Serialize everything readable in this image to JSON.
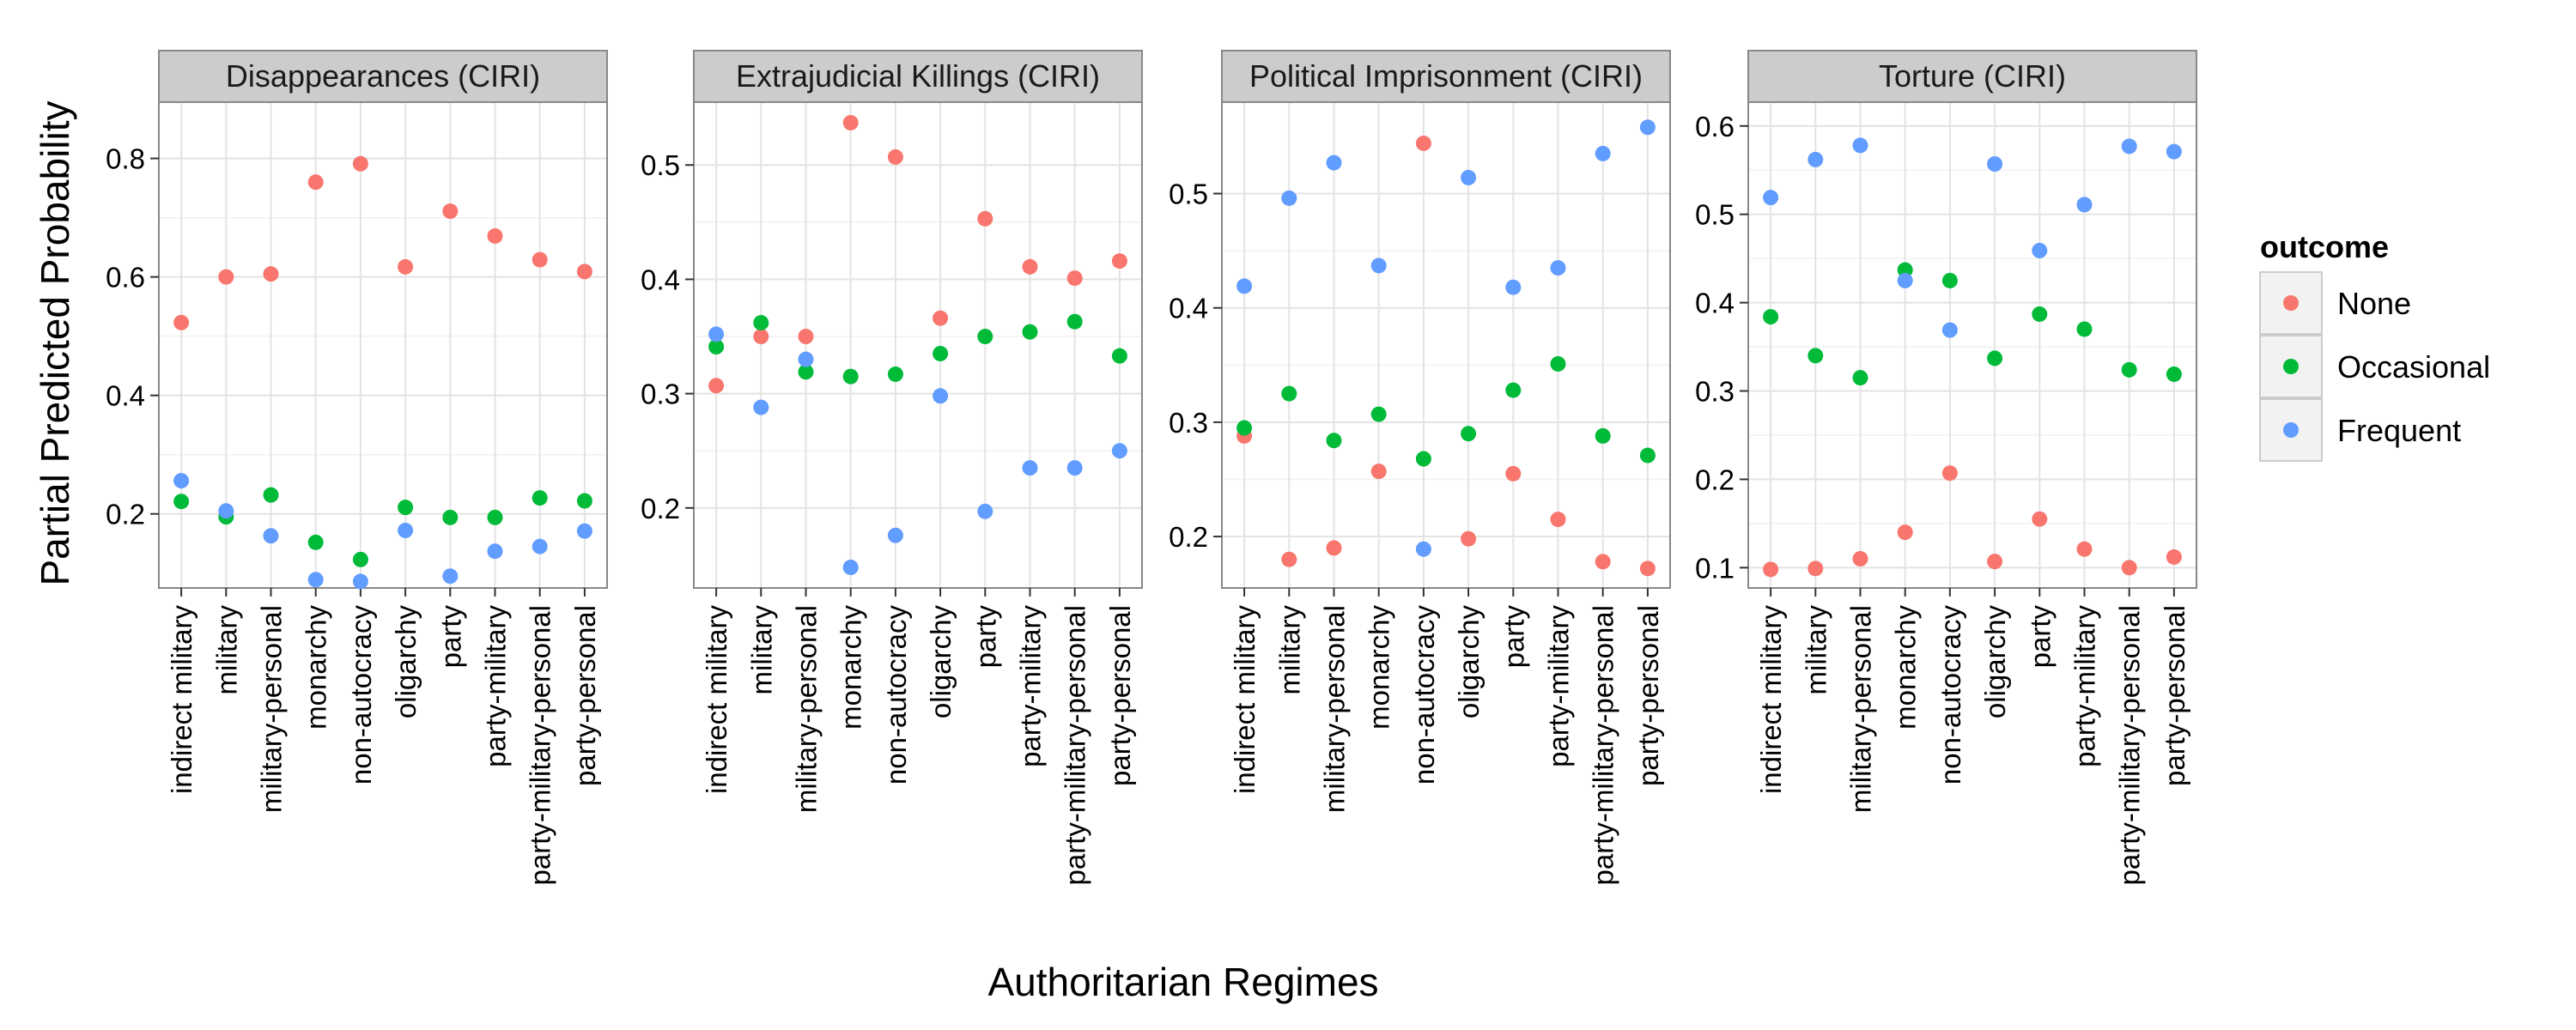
{
  "chart_data": {
    "type": "scatter",
    "xlabel": "Authoritarian Regimes",
    "ylabel": "Partial Predicted Probability",
    "categories": [
      "indirect military",
      "military",
      "military-personal",
      "monarchy",
      "non-autocracy",
      "oligarchy",
      "party",
      "party-military",
      "party-military-personal",
      "party-personal"
    ],
    "legend": {
      "title": "outcome",
      "position": "right",
      "entries": [
        {
          "name": "None",
          "color": "#F8766D"
        },
        {
          "name": "Occasional",
          "color": "#00BA38"
        },
        {
          "name": "Frequent",
          "color": "#619CFF"
        }
      ]
    },
    "grid": true,
    "panels": [
      {
        "title": "Disappearances (CIRI)",
        "ylim": [
          0.075,
          0.895
        ],
        "yticks": [
          0.2,
          0.4,
          0.6,
          0.8
        ],
        "ytick_labels": [
          "0.2",
          "0.4",
          "0.6",
          "0.8"
        ],
        "series": [
          {
            "name": "None",
            "values": [
              0.523,
              0.6,
              0.605,
              0.76,
              0.791,
              0.617,
              0.711,
              0.669,
              0.629,
              0.609
            ]
          },
          {
            "name": "Occasional",
            "values": [
              0.221,
              0.195,
              0.232,
              0.152,
              0.123,
              0.211,
              0.194,
              0.194,
              0.227,
              0.222
            ]
          },
          {
            "name": "Frequent",
            "values": [
              0.256,
              0.205,
              0.163,
              0.089,
              0.086,
              0.172,
              0.095,
              0.137,
              0.145,
              0.171
            ]
          }
        ]
      },
      {
        "title": "Extrajudicial Killings (CIRI)",
        "ylim": [
          0.13,
          0.555
        ],
        "yticks": [
          0.2,
          0.3,
          0.4,
          0.5
        ],
        "ytick_labels": [
          "0.2",
          "0.3",
          "0.4",
          "0.5"
        ],
        "series": [
          {
            "name": "None",
            "values": [
              0.307,
              0.35,
              0.35,
              0.537,
              0.507,
              0.366,
              0.453,
              0.411,
              0.401,
              0.416
            ]
          },
          {
            "name": "Occasional",
            "values": [
              0.341,
              0.362,
              0.319,
              0.315,
              0.317,
              0.335,
              0.35,
              0.354,
              0.363,
              0.333
            ]
          },
          {
            "name": "Frequent",
            "values": [
              0.352,
              0.288,
              0.33,
              0.148,
              0.176,
              0.298,
              0.197,
              0.235,
              0.235,
              0.25
            ]
          }
        ]
      },
      {
        "title": "Political Imprisonment (CIRI)",
        "ylim": [
          0.155,
          0.58
        ],
        "yticks": [
          0.2,
          0.3,
          0.4,
          0.5
        ],
        "ytick_labels": [
          "0.2",
          "0.3",
          "0.4",
          "0.5"
        ],
        "series": [
          {
            "name": "None",
            "values": [
              0.288,
              0.18,
              0.19,
              0.257,
              0.544,
              0.198,
              0.255,
              0.215,
              0.178,
              0.172
            ]
          },
          {
            "name": "Occasional",
            "values": [
              0.295,
              0.325,
              0.284,
              0.307,
              0.268,
              0.29,
              0.328,
              0.351,
              0.288,
              0.271
            ]
          },
          {
            "name": "Frequent",
            "values": [
              0.419,
              0.496,
              0.527,
              0.437,
              0.189,
              0.514,
              0.418,
              0.435,
              0.535,
              0.558
            ]
          }
        ]
      },
      {
        "title": "Torture (CIRI)",
        "ylim": [
          0.077,
          0.627
        ],
        "yticks": [
          0.1,
          0.2,
          0.3,
          0.4,
          0.5,
          0.6
        ],
        "ytick_labels": [
          "0.1",
          "0.2",
          "0.3",
          "0.4",
          "0.5",
          "0.6"
        ],
        "series": [
          {
            "name": "None",
            "values": [
              0.098,
              0.099,
              0.11,
              0.14,
              0.207,
              0.107,
              0.155,
              0.121,
              0.1,
              0.112
            ]
          },
          {
            "name": "Occasional",
            "values": [
              0.384,
              0.34,
              0.315,
              0.437,
              0.425,
              0.337,
              0.387,
              0.37,
              0.324,
              0.319
            ]
          },
          {
            "name": "Frequent",
            "values": [
              0.519,
              0.562,
              0.578,
              0.425,
              0.369,
              0.557,
              0.459,
              0.511,
              0.577,
              0.571
            ]
          }
        ]
      }
    ]
  }
}
